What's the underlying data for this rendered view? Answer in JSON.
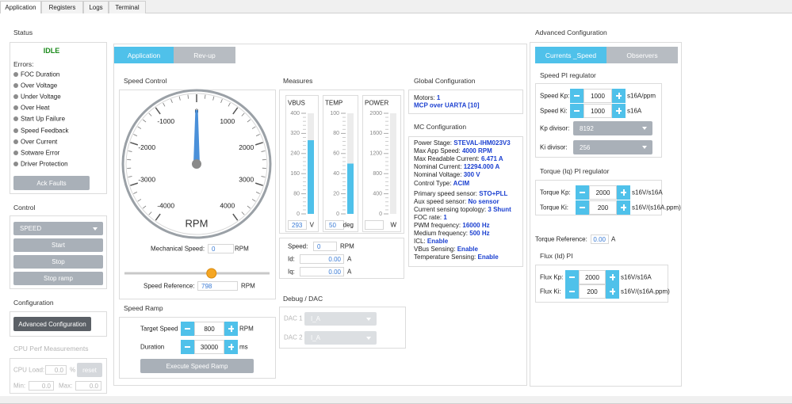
{
  "tabs": [
    "Application",
    "Registers",
    "Logs",
    "Terminal"
  ],
  "status": {
    "title": "Status",
    "state": "IDLE",
    "errors_label": "Errors:",
    "errors": [
      "FOC Duration",
      "Over Voltage",
      "Under Voltage",
      "Over Heat",
      "Start Up Failure",
      "Speed Feedback",
      "Over Current",
      "Sotware Error",
      "Driver Protection"
    ],
    "ack_button": "Ack Faults"
  },
  "control": {
    "title": "Control",
    "mode": "SPEED",
    "buttons": [
      "Start",
      "Stop",
      "Stop ramp"
    ]
  },
  "configuration": {
    "title": "Configuration",
    "button": "Advanced Configuration"
  },
  "cpu_perf": {
    "title": "CPU Perf Measurements",
    "load_label": "CPU Load:",
    "load": "0.0",
    "load_unit": "%",
    "reset": "reset",
    "min_label": "Min:",
    "min": "0.0",
    "max_label": "Max:",
    "max": "0.0"
  },
  "center_tabs": [
    "Application",
    "Rev-up"
  ],
  "speed_control": {
    "title": "Speed Control",
    "gauge_ticks": [
      -4000,
      -3000,
      -2000,
      -1000,
      0,
      1000,
      2000,
      3000,
      4000
    ],
    "gauge_unit": "RPM",
    "mech_speed_label": "Mechanical Speed:",
    "mech_speed": 0,
    "mech_speed_unit": "RPM",
    "speed_ref_label": "Speed Reference:",
    "speed_ref": 798,
    "speed_ref_unit": "RPM"
  },
  "speed_ramp": {
    "title": "Speed Ramp",
    "target_label": "Target Speed",
    "target": 800,
    "target_unit": "RPM",
    "duration_label": "Duration",
    "duration": 30000,
    "duration_unit": "ms",
    "button": "Execute Speed Ramp"
  },
  "measures": {
    "title": "Measures",
    "meters": [
      {
        "name": "VBUS",
        "ticks": [
          400,
          320,
          240,
          160,
          80,
          0
        ],
        "value": 293,
        "unit": "V"
      },
      {
        "name": "TEMP",
        "ticks": [
          100,
          80,
          60,
          40,
          20,
          0
        ],
        "value": 50,
        "unit": "deg"
      },
      {
        "name": "POWER",
        "ticks": [
          2000,
          1600,
          1200,
          800,
          400,
          0
        ],
        "unit": "W"
      }
    ],
    "speed_label": "Speed:",
    "speed": 0,
    "speed_unit": "RPM",
    "id_label": "Id:",
    "id": "0.00",
    "id_unit": "A",
    "iq_label": "Iq:",
    "iq": "0.00",
    "iq_unit": "A"
  },
  "debug_dac": {
    "title": "Debug / DAC",
    "channels": [
      {
        "label": "DAC 1",
        "value": "I_A"
      },
      {
        "label": "DAC 2",
        "value": "I_A"
      }
    ]
  },
  "global_config": {
    "title": "Global Configuration",
    "motors_label": "Motors:",
    "motors": 1,
    "connection": "MCP over UARTA [10]"
  },
  "mc_config": {
    "title": "MC Configuration",
    "items": [
      {
        "key": "Power Stage:",
        "value": "STEVAL-IHM023V3"
      },
      {
        "key": "Max App Speed:",
        "value": "4000 RPM"
      },
      {
        "key": "Max Readable Current:",
        "value": "6.471 A"
      },
      {
        "key": "Nominal Current:",
        "value": "12294.000 A"
      },
      {
        "key": "Nominal Voltage:",
        "value": "300 V"
      },
      {
        "key": "Control Type:",
        "value": "ACIM"
      },
      {
        "key": "Primary speed sensor:",
        "value": "STO+PLL"
      },
      {
        "key": "Aux speed sensor:",
        "value": "No sensor"
      },
      {
        "key": "Current sensing topology:",
        "value": "3 Shunt"
      },
      {
        "key": "FOC rate:",
        "value": "1"
      },
      {
        "key": "PWM frequency:",
        "value": "16000 Hz"
      },
      {
        "key": "Medium frequency:",
        "value": "500 Hz"
      },
      {
        "key": "ICL:",
        "value": "Enable"
      },
      {
        "key": "VBus Sensing:",
        "value": "Enable"
      },
      {
        "key": "Temperature Sensing:",
        "value": "Enable"
      }
    ]
  },
  "advanced": {
    "title": "Advanced Configuration",
    "tabs": [
      "Currents _Speed",
      "Observers"
    ],
    "speed_pi": {
      "title": "Speed PI regulator",
      "kp_label": "Speed Kp:",
      "kp": 1000,
      "kp_unit": "s16A/ppm",
      "ki_label": "Speed Ki:",
      "ki": 1000,
      "ki_unit": "s16A",
      "kp_div_label": "Kp divisor:",
      "kp_div": 8192,
      "ki_div_label": "Ki divisor:",
      "ki_div": 256
    },
    "torque_pi": {
      "title": "Torque (Iq) PI regulator",
      "kp_label": "Torque Kp:",
      "kp": 2000,
      "kp_unit": "s16V/s16A",
      "ki_label": "Torque Ki:",
      "ki": 200,
      "ki_unit": "s16V/(s16A.ppm)"
    },
    "torque_ref_label": "Torque Reference:",
    "torque_ref": "0.00",
    "torque_ref_unit": "A",
    "flux_pi": {
      "title": "Flux (Id) PI",
      "kp_label": "Flux Kp:",
      "kp": 2000,
      "kp_unit": "s16V/s16A",
      "ki_label": "Flux Ki:",
      "ki": 200,
      "ki_unit": "s16V/(s16A.ppm)"
    }
  }
}
